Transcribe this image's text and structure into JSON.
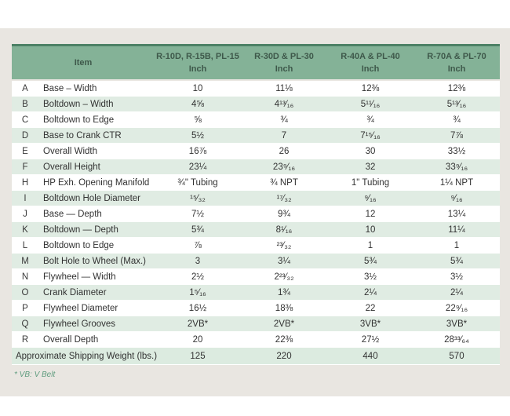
{
  "table": {
    "header": {
      "item_label": "Item",
      "columns": [
        {
          "models": "R-10D, R-15B, PL-15",
          "unit": "Inch"
        },
        {
          "models": "R-30D & PL-30",
          "unit": "Inch"
        },
        {
          "models": "R-40A & PL-40",
          "unit": "Inch"
        },
        {
          "models": "R-70A & PL-70",
          "unit": "Inch"
        }
      ]
    },
    "rows": [
      {
        "letter": "A",
        "item": "Base – Width",
        "values": [
          "10",
          "11⅛",
          "12⅜",
          "12⅜"
        ]
      },
      {
        "letter": "B",
        "item": "Boltdown – Width",
        "values": [
          "4⅝",
          "4¹³⁄₁₆",
          "5¹¹⁄₁₆",
          "5¹³⁄₁₆"
        ]
      },
      {
        "letter": "C",
        "item": "Boltdown to Edge",
        "values": [
          "⅝",
          "¾",
          "¾",
          "¾"
        ]
      },
      {
        "letter": "D",
        "item": "Base to Crank CTR",
        "values": [
          "5½",
          "7",
          "7¹⁵⁄₁₆",
          "7⅞"
        ]
      },
      {
        "letter": "E",
        "item": "Overall Width",
        "values": [
          "16⅞",
          "26",
          "30",
          "33½"
        ]
      },
      {
        "letter": "F",
        "item": "Overall Height",
        "values": [
          "23¼",
          "23⁹⁄₁₆",
          "32",
          "33⁹⁄₁₆"
        ]
      },
      {
        "letter": "H",
        "item": "HP Exh. Opening Manifold",
        "values": [
          "¾\" Tubing",
          "¾ NPT",
          "1\" Tubing",
          "1¼ NPT"
        ]
      },
      {
        "letter": "I",
        "item": "Boltdown Hole Diameter",
        "values": [
          "¹⁵⁄₃₂",
          "¹⁷⁄₃₂",
          "⁹⁄₁₆",
          "⁹⁄₁₆"
        ]
      },
      {
        "letter": "J",
        "item": "Base — Depth",
        "values": [
          "7½",
          "9¾",
          "12",
          "13¼"
        ]
      },
      {
        "letter": "K",
        "item": "Boltdown — Depth",
        "values": [
          "5¾",
          "8¹⁄₁₆",
          "10",
          "11¼"
        ]
      },
      {
        "letter": "L",
        "item": "Boltdown to Edge",
        "values": [
          "⅞",
          "²³⁄₃₂",
          "1",
          "1"
        ]
      },
      {
        "letter": "M",
        "item": "Bolt Hole to Wheel (Max.)",
        "values": [
          "3",
          "3¼",
          "5¾",
          "5¾"
        ]
      },
      {
        "letter": "N",
        "item": "Flywheel — Width",
        "values": [
          "2½",
          "2²³⁄₃₂",
          "3½",
          "3½"
        ]
      },
      {
        "letter": "O",
        "item": "Crank Diameter",
        "values": [
          "1⁵⁄₁₆",
          "1¾",
          "2¼",
          "2¼"
        ]
      },
      {
        "letter": "P",
        "item": "Flywheel Diameter",
        "values": [
          "16½",
          "18⅜",
          "22",
          "22⁹⁄₁₆"
        ]
      },
      {
        "letter": "Q",
        "item": "Flywheel Grooves",
        "values": [
          "2VB*",
          "2VB*",
          "3VB*",
          "3VB*"
        ]
      },
      {
        "letter": "R",
        "item": "Overall Depth",
        "values": [
          "20",
          "22⅜",
          "27½",
          "28³³⁄₆₄"
        ]
      }
    ],
    "weight_row": {
      "label": "Approximate Shipping Weight (lbs.)",
      "values": [
        "125",
        "220",
        "440",
        "570"
      ]
    },
    "footnote": "* VB:  V Belt"
  },
  "colors": {
    "page_background": "#e9e6e1",
    "header_green": "#84b297",
    "header_top_border": "#4d8166",
    "header_text": "#3e584a",
    "row_stripe_green": "#e0ece3",
    "body_text": "#323232",
    "footnote_green": "#5f9c7e"
  }
}
